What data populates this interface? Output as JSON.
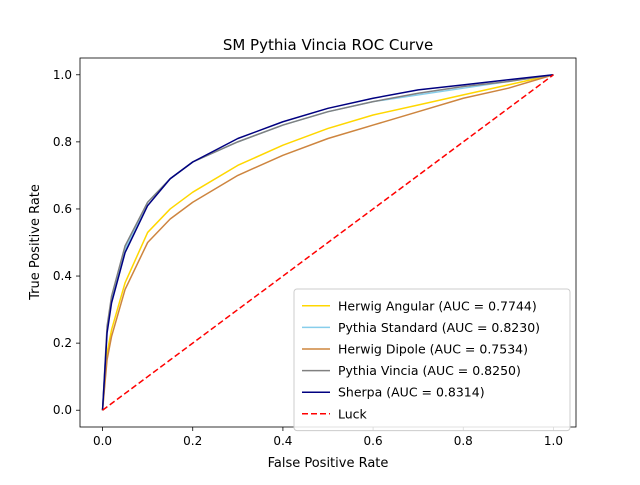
{
  "chart_data": {
    "type": "line",
    "title": "SM Pythia Vincia ROC Curve",
    "xlabel": "False Positive Rate",
    "ylabel": "True Positive Rate",
    "xlim": [
      -0.05,
      1.05
    ],
    "ylim": [
      -0.05,
      1.05
    ],
    "xticks": [
      0.0,
      0.2,
      0.4,
      0.6,
      0.8,
      1.0
    ],
    "yticks": [
      0.0,
      0.2,
      0.4,
      0.6,
      0.8,
      1.0
    ],
    "xtick_labels": [
      "0.0",
      "0.2",
      "0.4",
      "0.6",
      "0.8",
      "1.0"
    ],
    "ytick_labels": [
      "0.0",
      "0.2",
      "0.4",
      "0.6",
      "0.8",
      "1.0"
    ],
    "grid": false,
    "legend_position": "lower-right",
    "x": [
      0,
      0.01,
      0.02,
      0.05,
      0.1,
      0.15,
      0.2,
      0.3,
      0.4,
      0.5,
      0.6,
      0.7,
      0.8,
      0.9,
      1.0
    ],
    "series": [
      {
        "name": "Herwig Angular (AUC = 0.7744)",
        "color": "#ffd700",
        "dashed": false,
        "values": [
          0,
          0.17,
          0.24,
          0.38,
          0.53,
          0.6,
          0.65,
          0.73,
          0.79,
          0.84,
          0.88,
          0.91,
          0.94,
          0.97,
          1.0
        ]
      },
      {
        "name": "Pythia Standard (AUC = 0.8230)",
        "color": "#87ceeb",
        "dashed": false,
        "values": [
          0,
          0.24,
          0.33,
          0.48,
          0.62,
          0.69,
          0.74,
          0.8,
          0.85,
          0.89,
          0.92,
          0.94,
          0.96,
          0.98,
          1.0
        ]
      },
      {
        "name": "Herwig Dipole (AUC = 0.7534)",
        "color": "#cd853f",
        "dashed": false,
        "values": [
          0,
          0.15,
          0.22,
          0.36,
          0.5,
          0.57,
          0.62,
          0.7,
          0.76,
          0.81,
          0.85,
          0.89,
          0.93,
          0.96,
          1.0
        ]
      },
      {
        "name": "Pythia Vincia (AUC = 0.8250)",
        "color": "#808080",
        "dashed": false,
        "values": [
          0,
          0.25,
          0.34,
          0.49,
          0.62,
          0.69,
          0.74,
          0.8,
          0.85,
          0.89,
          0.92,
          0.945,
          0.965,
          0.98,
          1.0
        ]
      },
      {
        "name": "Sherpa (AUC = 0.8314)",
        "color": "#000080",
        "dashed": false,
        "values": [
          0,
          0.23,
          0.32,
          0.47,
          0.61,
          0.69,
          0.74,
          0.81,
          0.86,
          0.9,
          0.93,
          0.955,
          0.97,
          0.985,
          1.0
        ]
      },
      {
        "name": "Luck",
        "color": "#ff0000",
        "dashed": true,
        "values": [
          0,
          0.01,
          0.02,
          0.05,
          0.1,
          0.15,
          0.2,
          0.3,
          0.4,
          0.5,
          0.6,
          0.7,
          0.8,
          0.9,
          1.0
        ]
      }
    ]
  }
}
